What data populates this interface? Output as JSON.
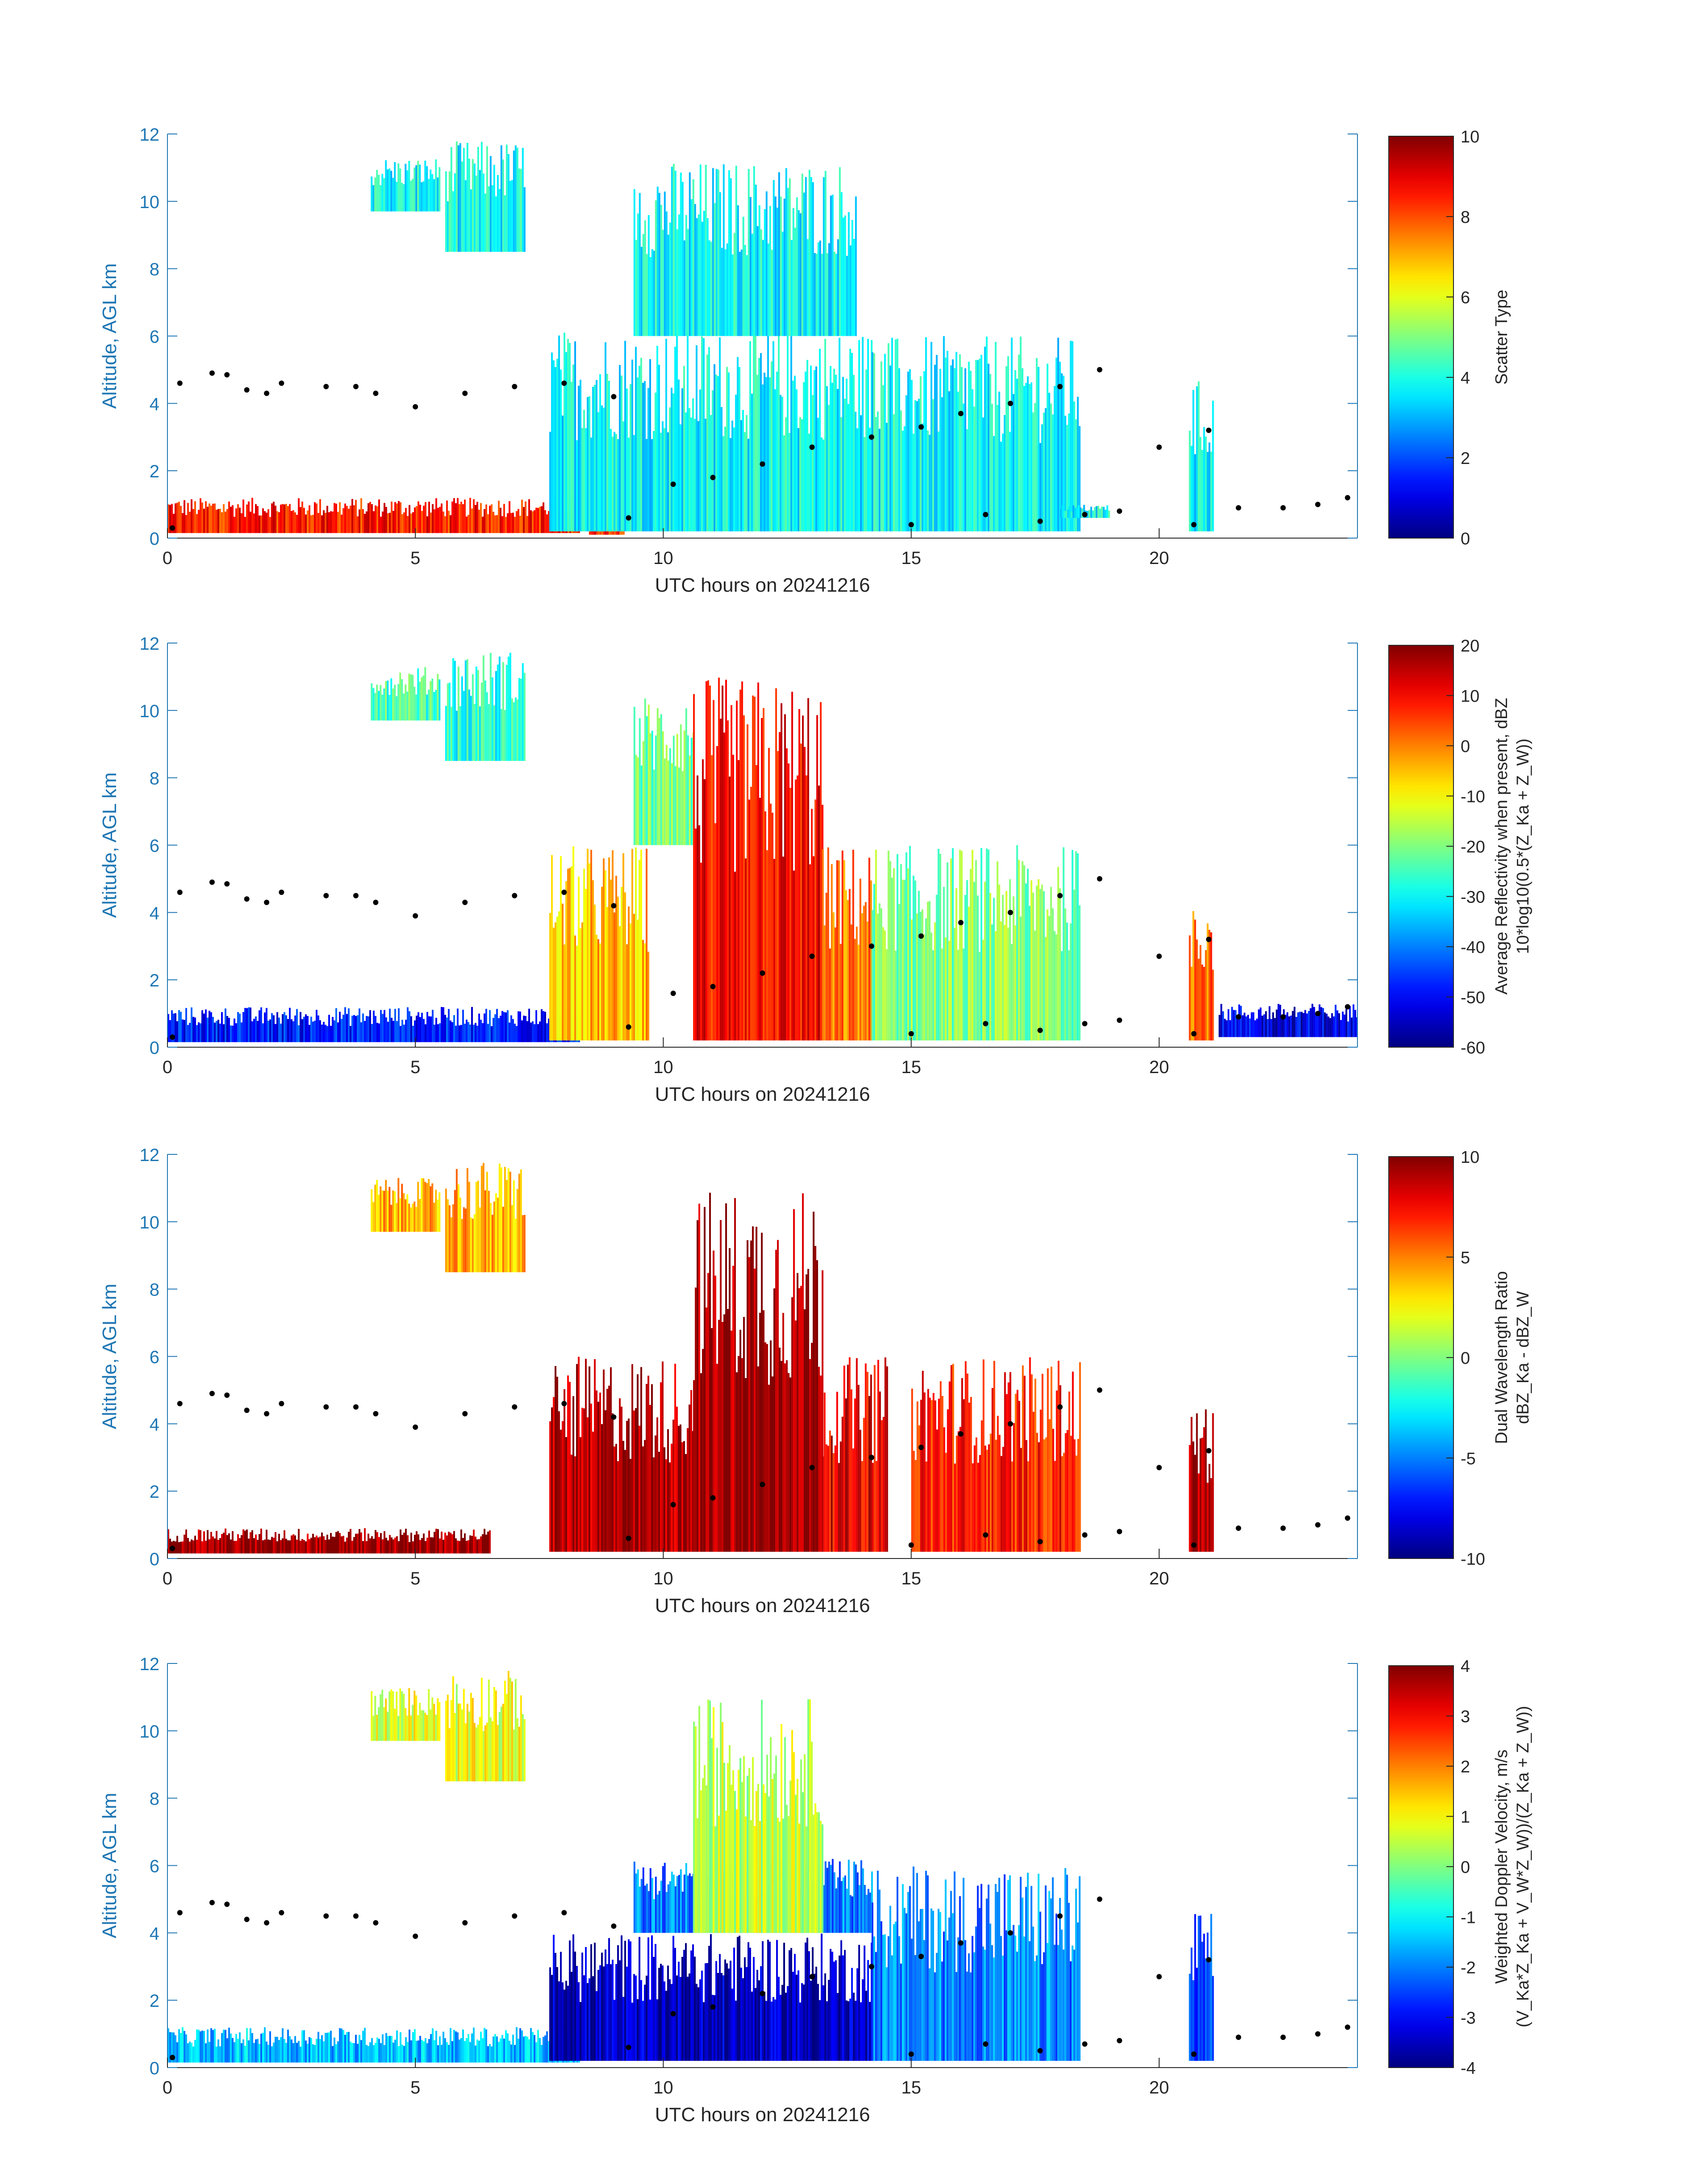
{
  "figure": {
    "background": "#ffffff"
  },
  "chart_data": [
    {
      "type": "heatmap",
      "xlabel": "UTC hours on 20241216",
      "ylabel": "Altitude, AGL km",
      "xlim": [
        0,
        24
      ],
      "ylim": [
        0,
        12
      ],
      "xticks": [
        0,
        5,
        10,
        15,
        20
      ],
      "yticks": [
        0,
        2,
        4,
        6,
        8,
        10,
        12
      ],
      "colorbar": {
        "label_lines": [
          "Scatter Type"
        ],
        "clim": [
          0,
          10
        ],
        "ticks": [
          0,
          2,
          4,
          6,
          8,
          10
        ],
        "colormap": "jet"
      },
      "grid": false,
      "regions": [
        {
          "x": [
            0.0,
            8.3
          ],
          "y": [
            0.15,
            1.2
          ],
          "value": 8.5
        },
        {
          "x": [
            8.5,
            9.2
          ],
          "y": [
            0.1,
            0.7
          ],
          "value": 8.5
        },
        {
          "x": [
            4.1,
            5.5
          ],
          "y": [
            9.7,
            11.3
          ],
          "value": 3.8
        },
        {
          "x": [
            5.6,
            7.2
          ],
          "y": [
            8.5,
            11.8
          ],
          "value": 3.8
        },
        {
          "x": [
            7.7,
            14.2
          ],
          "y": [
            0.2,
            6.2
          ],
          "value": 3.8
        },
        {
          "x": [
            9.4,
            13.9
          ],
          "y": [
            6.0,
            11.2
          ],
          "value": 3.8
        },
        {
          "x": [
            14.2,
            18.4
          ],
          "y": [
            0.2,
            6.0
          ],
          "value": 3.8
        },
        {
          "x": [
            20.6,
            21.1
          ],
          "y": [
            0.2,
            4.7
          ],
          "value": 3.8
        },
        {
          "x": [
            18.0,
            19.0
          ],
          "y": [
            0.6,
            1.0
          ],
          "value": 3.8
        }
      ],
      "black_dots": [
        {
          "x": 0.1,
          "y": 0.3
        },
        {
          "x": 0.25,
          "y": 4.6
        },
        {
          "x": 0.9,
          "y": 4.9
        },
        {
          "x": 1.2,
          "y": 4.85
        },
        {
          "x": 1.6,
          "y": 4.4
        },
        {
          "x": 2.0,
          "y": 4.3
        },
        {
          "x": 2.3,
          "y": 4.6
        },
        {
          "x": 3.2,
          "y": 4.5
        },
        {
          "x": 3.8,
          "y": 4.5
        },
        {
          "x": 4.2,
          "y": 4.3
        },
        {
          "x": 5.0,
          "y": 3.9
        },
        {
          "x": 6.0,
          "y": 4.3
        },
        {
          "x": 7.0,
          "y": 4.5
        },
        {
          "x": 8.0,
          "y": 4.6
        },
        {
          "x": 9.0,
          "y": 4.2
        },
        {
          "x": 9.3,
          "y": 0.6
        },
        {
          "x": 10.2,
          "y": 1.6
        },
        {
          "x": 11.0,
          "y": 1.8
        },
        {
          "x": 12.0,
          "y": 2.2
        },
        {
          "x": 13.0,
          "y": 2.7
        },
        {
          "x": 14.2,
          "y": 3.0
        },
        {
          "x": 15.2,
          "y": 3.3
        },
        {
          "x": 16.0,
          "y": 3.7
        },
        {
          "x": 17.0,
          "y": 4.0
        },
        {
          "x": 18.0,
          "y": 4.5
        },
        {
          "x": 18.8,
          "y": 5.0
        },
        {
          "x": 15.0,
          "y": 0.4
        },
        {
          "x": 16.5,
          "y": 0.7
        },
        {
          "x": 17.6,
          "y": 0.5
        },
        {
          "x": 18.5,
          "y": 0.7
        },
        {
          "x": 19.2,
          "y": 0.8
        },
        {
          "x": 20.0,
          "y": 2.7
        },
        {
          "x": 20.7,
          "y": 0.4
        },
        {
          "x": 21.0,
          "y": 3.2
        },
        {
          "x": 21.6,
          "y": 0.9
        },
        {
          "x": 22.5,
          "y": 0.9
        },
        {
          "x": 23.2,
          "y": 1.0
        },
        {
          "x": 23.8,
          "y": 1.2
        }
      ]
    },
    {
      "type": "heatmap",
      "xlabel": "UTC hours on 20241216",
      "ylabel": "Altitude, AGL km",
      "xlim": [
        0,
        24
      ],
      "ylim": [
        0,
        12
      ],
      "xticks": [
        0,
        5,
        10,
        15,
        20
      ],
      "yticks": [
        0,
        2,
        4,
        6,
        8,
        10,
        12
      ],
      "colorbar": {
        "label_lines": [
          "Average Reflectivity when present, dBZ",
          "10*log10(0.5*(Z_Ka + Z_W))"
        ],
        "clim": [
          -60,
          20
        ],
        "ticks": [
          -60,
          -50,
          -40,
          -30,
          -20,
          -10,
          0,
          10,
          20
        ],
        "colormap": "jet"
      },
      "grid": false,
      "regions": [
        {
          "x": [
            0.0,
            8.3
          ],
          "y": [
            0.15,
            1.2
          ],
          "value": -48
        },
        {
          "x": [
            4.1,
            5.5
          ],
          "y": [
            9.7,
            11.3
          ],
          "value": -25
        },
        {
          "x": [
            5.6,
            7.2
          ],
          "y": [
            8.5,
            11.8
          ],
          "value": -28
        },
        {
          "x": [
            7.7,
            9.7
          ],
          "y": [
            0.2,
            6.0
          ],
          "value": -5
        },
        {
          "x": [
            9.4,
            10.6
          ],
          "y": [
            6.0,
            10.5
          ],
          "value": -22
        },
        {
          "x": [
            10.6,
            13.2
          ],
          "y": [
            0.2,
            11.0
          ],
          "value": 10
        },
        {
          "x": [
            13.2,
            14.2
          ],
          "y": [
            0.2,
            6.0
          ],
          "value": 0
        },
        {
          "x": [
            14.2,
            18.4
          ],
          "y": [
            0.2,
            6.0
          ],
          "value": -20
        },
        {
          "x": [
            20.6,
            21.1
          ],
          "y": [
            0.2,
            4.7
          ],
          "value": 3
        },
        {
          "x": [
            21.2,
            24.0
          ],
          "y": [
            0.3,
            1.3
          ],
          "value": -52
        }
      ]
    },
    {
      "type": "heatmap",
      "xlabel": "UTC hours on 20241216",
      "ylabel": "Altitude, AGL km",
      "xlim": [
        0,
        24
      ],
      "ylim": [
        0,
        12
      ],
      "xticks": [
        0,
        5,
        10,
        15,
        20
      ],
      "yticks": [
        0,
        2,
        4,
        6,
        8,
        10,
        12
      ],
      "colorbar": {
        "label_lines": [
          "Dual Wavelength Ratio",
          "dBZ_Ka - dBZ_W"
        ],
        "clim": [
          -10,
          10
        ],
        "ticks": [
          -10,
          -5,
          0,
          5,
          10
        ],
        "colormap": "jet"
      },
      "grid": false,
      "regions": [
        {
          "x": [
            0.0,
            6.5
          ],
          "y": [
            0.15,
            0.9
          ],
          "value": 9.5
        },
        {
          "x": [
            4.1,
            5.5
          ],
          "y": [
            9.7,
            11.3
          ],
          "value": 4
        },
        {
          "x": [
            5.6,
            7.2
          ],
          "y": [
            8.5,
            11.8
          ],
          "value": 4
        },
        {
          "x": [
            7.7,
            10.6
          ],
          "y": [
            0.2,
            6.0
          ],
          "value": 9
        },
        {
          "x": [
            10.6,
            13.2
          ],
          "y": [
            0.2,
            11.0
          ],
          "value": 9.5
        },
        {
          "x": [
            13.2,
            14.5
          ],
          "y": [
            0.2,
            6.0
          ],
          "value": 8
        },
        {
          "x": [
            15.0,
            18.4
          ],
          "y": [
            0.2,
            6.0
          ],
          "value": 7
        },
        {
          "x": [
            20.6,
            21.1
          ],
          "y": [
            0.2,
            4.7
          ],
          "value": 9
        }
      ]
    },
    {
      "type": "heatmap",
      "xlabel": "UTC hours on 20241216",
      "ylabel": "Altitude, AGL km",
      "xlim": [
        0,
        24
      ],
      "ylim": [
        0,
        12
      ],
      "xticks": [
        0,
        5,
        10,
        15,
        20
      ],
      "yticks": [
        0,
        2,
        4,
        6,
        8,
        10,
        12
      ],
      "colorbar": {
        "label_lines": [
          "Weighted Doppler Velocity, m/s",
          "(V_Ka*Z_Ka + V_W*Z_W))/(Z_Ka + Z_W))"
        ],
        "clim": [
          -4,
          4
        ],
        "ticks": [
          -4,
          -3,
          -2,
          -1,
          0,
          1,
          2,
          3,
          4
        ],
        "colormap": "jet"
      },
      "grid": false,
      "regions": [
        {
          "x": [
            0.0,
            8.3
          ],
          "y": [
            0.15,
            1.2
          ],
          "value": -1.5
        },
        {
          "x": [
            4.1,
            5.5
          ],
          "y": [
            9.7,
            11.3
          ],
          "value": 0.8
        },
        {
          "x": [
            5.6,
            7.2
          ],
          "y": [
            8.5,
            11.8
          ],
          "value": 0.8
        },
        {
          "x": [
            7.7,
            14.2
          ],
          "y": [
            0.2,
            4.0
          ],
          "value": -3.5
        },
        {
          "x": [
            9.4,
            14.2
          ],
          "y": [
            4.0,
            6.2
          ],
          "value": -2.0
        },
        {
          "x": [
            10.6,
            13.2
          ],
          "y": [
            4.0,
            11.0
          ],
          "value": 0.5
        },
        {
          "x": [
            14.2,
            18.4
          ],
          "y": [
            0.2,
            6.0
          ],
          "value": -2.0
        },
        {
          "x": [
            20.6,
            21.1
          ],
          "y": [
            0.2,
            4.7
          ],
          "value": -2.5
        }
      ]
    }
  ]
}
